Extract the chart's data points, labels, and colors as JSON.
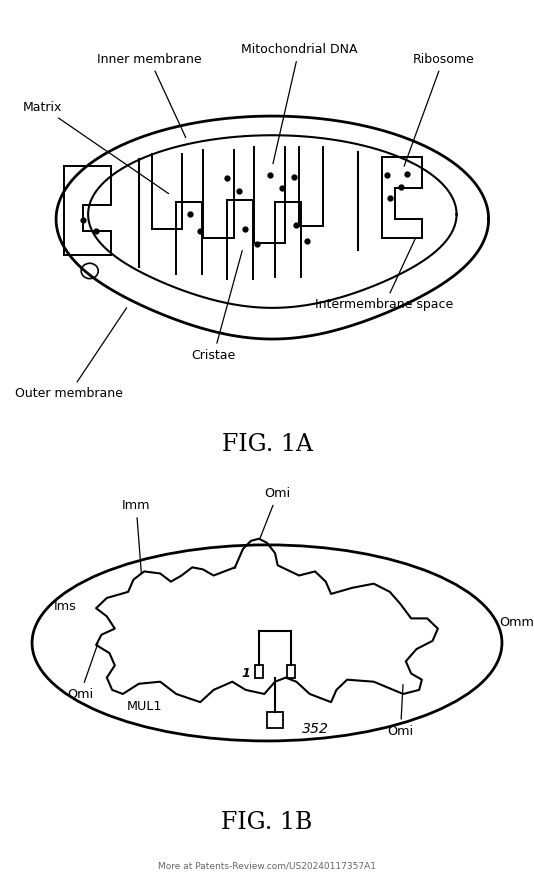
{
  "fig_width": 5.34,
  "fig_height": 8.88,
  "dpi": 100,
  "bg": "#ffffff",
  "lc": "#000000",
  "fig1a_title": "FIG. 1A",
  "fig1b_title": "FIG. 1B",
  "footer": "More at Patents-Review.com/US20240117357A1",
  "lw_outer": 2.0,
  "lw_inner": 1.5,
  "lw_crista": 1.4,
  "dot_size": 3.5
}
